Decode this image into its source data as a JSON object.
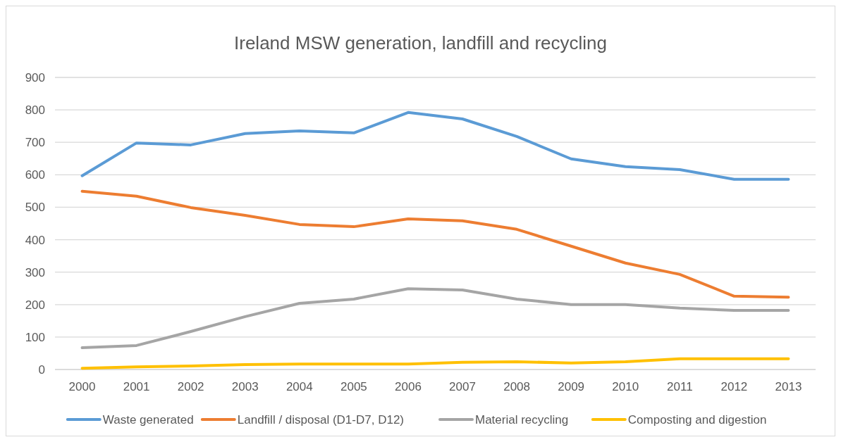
{
  "chart_data": {
    "type": "line",
    "title": "Ireland MSW generation, landfill and recycling",
    "categories": [
      "2000",
      "2001",
      "2002",
      "2003",
      "2004",
      "2005",
      "2006",
      "2007",
      "2008",
      "2009",
      "2010",
      "2011",
      "2012",
      "2013"
    ],
    "series": [
      {
        "name": "Waste generated",
        "color": "#5b9bd5",
        "values": [
          597,
          698,
          692,
          727,
          735,
          729,
          792,
          772,
          718,
          649,
          625,
          616,
          586,
          586
        ]
      },
      {
        "name": "Landfill / disposal (D1-D7, D12)",
        "color": "#ed7d31",
        "values": [
          549,
          534,
          499,
          475,
          447,
          440,
          464,
          458,
          432,
          380,
          328,
          293,
          226,
          223
        ]
      },
      {
        "name": "Material recycling",
        "color": "#a5a5a5",
        "values": [
          67,
          74,
          117,
          163,
          204,
          217,
          249,
          245,
          217,
          200,
          200,
          189,
          182,
          182
        ]
      },
      {
        "name": "Composting and digestion",
        "color": "#ffc000",
        "values": [
          4,
          8,
          11,
          15,
          17,
          17,
          17,
          22,
          24,
          20,
          24,
          33,
          33,
          33
        ]
      }
    ],
    "ylim": [
      0,
      900
    ],
    "yticks": [
      0,
      100,
      200,
      300,
      400,
      500,
      600,
      700,
      800,
      900
    ],
    "grid": "y",
    "legend": "bottom",
    "marker": "none",
    "line_style": "solid"
  }
}
